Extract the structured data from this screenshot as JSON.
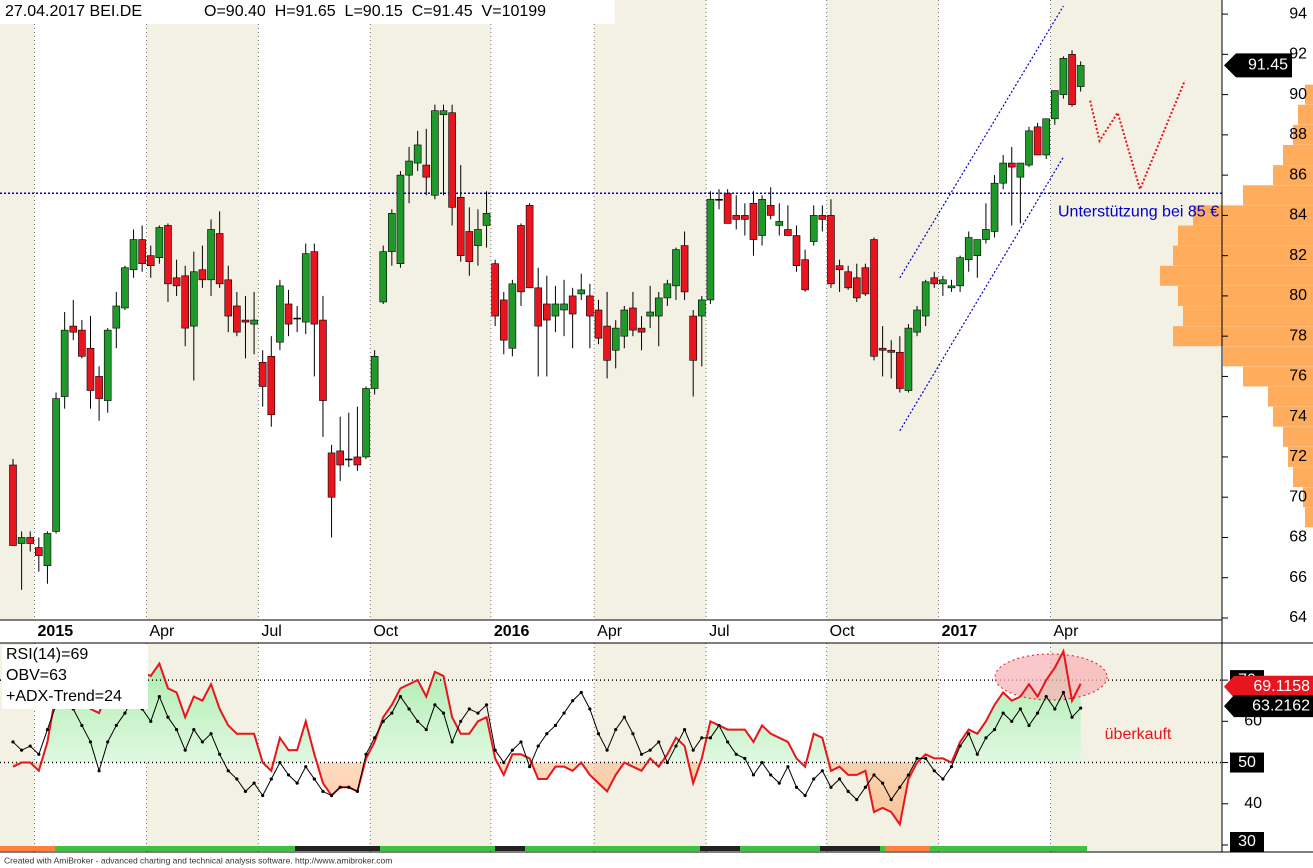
{
  "chart_data": [
    {
      "type": "candlestick",
      "header": [
        "27.04.2017 BEI.DE",
        "O=90.40  H=91.65  L=90.15  C=91.45  V=10199"
      ],
      "categories": [
        null,
        null,
        null,
        "2015",
        null,
        null,
        null,
        null,
        null,
        null,
        null,
        null,
        null,
        null,
        null,
        null,
        "Apr",
        null,
        null,
        null,
        null,
        null,
        null,
        null,
        null,
        null,
        null,
        null,
        null,
        "Jul",
        null,
        null,
        null,
        null,
        null,
        null,
        null,
        null,
        null,
        null,
        null,
        null,
        "Oct",
        null,
        null,
        null,
        null,
        null,
        null,
        null,
        null,
        null,
        null,
        null,
        null,
        null,
        "2016",
        null,
        null,
        null,
        null,
        null,
        null,
        null,
        null,
        null,
        null,
        null,
        "Apr",
        null,
        null,
        null,
        null,
        null,
        null,
        null,
        null,
        null,
        null,
        null,
        null,
        "Jul",
        null,
        null,
        null,
        null,
        null,
        null,
        null,
        null,
        null,
        null,
        null,
        null,
        null,
        "Oct",
        null,
        null,
        null,
        null,
        null,
        null,
        null,
        null,
        null,
        null,
        null,
        null,
        "2017",
        null,
        null,
        null,
        null,
        null,
        null,
        null,
        null,
        null,
        null,
        null,
        null,
        "Apr",
        null,
        null,
        null
      ],
      "open": [
        71.6,
        67.7,
        68.0,
        67.5,
        66.6,
        68.3,
        75.0,
        78.5,
        78.3,
        77.4,
        76,
        74.8,
        78.4,
        79.4,
        81.3,
        82.8,
        82.0,
        81.9,
        83.5,
        80.9,
        81,
        78.5,
        81.3,
        80.8,
        83.1,
        80.8,
        79.5,
        78.8,
        78.6,
        76.7,
        77.0,
        77.7,
        79.6,
        78.9,
        78.7,
        82.2,
        78.8,
        72.2,
        72.3,
        71.9,
        72.0,
        72.0,
        75.4,
        79.7,
        82.2,
        81.6,
        86.0,
        86.6,
        86.5,
        85.0,
        89.0,
        89.1,
        84.9,
        83.2,
        82.5,
        83.5,
        81.6,
        79.8,
        77.4,
        83.5,
        84.5,
        80.4,
        79.6,
        79.0,
        79.3,
        80.0,
        80.1,
        80.0,
        79.3,
        78.5,
        77.3,
        78.0,
        79.4,
        78.4,
        79.0,
        79.0,
        79.9,
        80.5,
        82.5,
        79.0,
        79.0,
        79.8,
        84.8,
        85.1,
        84.0,
        84.0,
        84.6,
        83.0,
        84.5,
        83.5,
        83.3,
        83.0,
        81.8,
        82.7,
        84.0,
        84.0,
        81.5,
        81.2,
        80.9,
        81.4,
        82.8,
        77.4,
        77.3,
        77.2,
        75.3,
        78.2,
        79.0,
        80.9,
        80.6,
        80.4,
        80.5,
        81.8,
        82.0,
        82.8,
        83.2,
        85.6,
        86.6,
        85.9,
        86.5,
        88.4,
        87.0,
        88.8,
        90.0,
        92.0,
        90.4
      ],
      "high": [
        71.9,
        68.3,
        68.3,
        68,
        68.3,
        75.2,
        79.2,
        79.8,
        78.8,
        79.0,
        76.5,
        78.4,
        80.2,
        81.5,
        83.3,
        83.5,
        82.5,
        83.5,
        83.6,
        81.8,
        81.5,
        82.2,
        82.5,
        83.8,
        84.2,
        81.5,
        80.2,
        80.0,
        80.2,
        77.3,
        78.0,
        80.8,
        80.3,
        79.5,
        82.6,
        82.6,
        80,
        72.6,
        74,
        74.2,
        74.5,
        75.5,
        77.3,
        82.5,
        84.3,
        86.2,
        87.4,
        88.2,
        88.3,
        89.5,
        89.5,
        89.5,
        86.5,
        84.4,
        84.3,
        85.2,
        81.8,
        80.2,
        80.8,
        83.6,
        84.6,
        81.4,
        81.0,
        80.5,
        80.8,
        80.4,
        81.1,
        80.6,
        79.8,
        80.2,
        78.8,
        79.5,
        80.2,
        79.0,
        80.5,
        80.2,
        80.8,
        82.4,
        83.2,
        79.3,
        80.0,
        85.2,
        85.3,
        85.3,
        85.0,
        84.6,
        85.2,
        85.0,
        85.4,
        84.6,
        84.5,
        83.5,
        82.3,
        84.5,
        84.5,
        84.8,
        81.8,
        81.5,
        81.6,
        81.6,
        82.9,
        78.5,
        77.8,
        78,
        78.6,
        79.5,
        80.8,
        81.2,
        81.0,
        80.8,
        82.0,
        83.2,
        82.8,
        84.6,
        86.0,
        87.0,
        87.4,
        86.6,
        88.4,
        88.6,
        88.8,
        90.2,
        91.9,
        92.2,
        91.65
      ],
      "low": [
        67.6,
        65.4,
        67.3,
        66.3,
        65.7,
        68.2,
        74.4,
        77.8,
        76.9,
        74.4,
        73.8,
        74.2,
        77.4,
        79.3,
        80.9,
        81.2,
        80.9,
        81.6,
        79.7,
        80.0,
        77.5,
        75.8,
        80.4,
        80.0,
        80.4,
        78.2,
        78.0,
        76.9,
        77.1,
        74.5,
        73.5,
        77.3,
        78.0,
        78.2,
        78.1,
        76.0,
        73.0,
        68.0,
        70.8,
        71.5,
        71.3,
        71.9,
        75.1,
        79.6,
        81.5,
        81.4,
        84.6,
        86.2,
        85.0,
        84.8,
        85.0,
        83.5,
        81.7,
        81.0,
        81.5,
        82.4,
        78.5,
        77.1,
        77.0,
        79.5,
        80.4,
        76.0,
        76.0,
        78.2,
        78.0,
        77.4,
        79.8,
        77.4,
        77.6,
        75.9,
        76.4,
        77.4,
        78.0,
        77.3,
        78.4,
        77.5,
        79.5,
        79.8,
        79.8,
        75.0,
        76.5,
        79.6,
        84.3,
        83.6,
        83.3,
        83.0,
        82.0,
        82.5,
        83.8,
        83.0,
        83.0,
        81.2,
        80.2,
        82.5,
        83.2,
        80.4,
        80.2,
        80.3,
        79.7,
        80.0,
        76.8,
        76.0,
        75.9,
        75.2,
        75.2,
        78.0,
        78.5,
        80.4,
        80.0,
        80.2,
        80.2,
        81.2,
        80.9,
        82.6,
        82.9,
        85.3,
        83.5,
        83.6,
        86.4,
        87.1,
        86.8,
        88.5,
        89.8,
        89.4,
        90.15
      ],
      "close": [
        67.6,
        68.0,
        67.7,
        67.1,
        68.2,
        74.9,
        78.3,
        78.2,
        77.0,
        75.3,
        74.9,
        78.3,
        79.5,
        81.4,
        82.8,
        81.6,
        81.5,
        83.4,
        80.6,
        80.5,
        78.4,
        81.2,
        80.8,
        83.3,
        80.6,
        79.0,
        78.2,
        78.7,
        78.8,
        75.5,
        74.1,
        80.5,
        78.6,
        78.9,
        82.1,
        78.6,
        74.8,
        70.0,
        71.6,
        71.9,
        71.6,
        75.4,
        77.0,
        82.2,
        84.1,
        86.0,
        86.7,
        87.5,
        85.9,
        89.2,
        89.2,
        84.4,
        82.0,
        81.7,
        83.3,
        84.1,
        79.0,
        77.8,
        80.6,
        80.2,
        80.4,
        78.5,
        78.8,
        79.6,
        79.6,
        79.1,
        80.3,
        79.0,
        77.9,
        76.8,
        78.4,
        79.3,
        78.3,
        78.2,
        79.2,
        79.9,
        80.6,
        82.3,
        80.2,
        76.8,
        79.8,
        84.8,
        84.8,
        83.6,
        83.8,
        83.8,
        82.8,
        84.8,
        84.0,
        83.7,
        83.0,
        81.5,
        80.3,
        84.0,
        83.8,
        80.6,
        81.3,
        80.4,
        79.9,
        80.1,
        77.0,
        77.3,
        77.2,
        75.4,
        78.4,
        79.3,
        80.7,
        80.6,
        80.8,
        80.5,
        81.9,
        82.9,
        82.8,
        83.3,
        85.6,
        86.6,
        86.4,
        86.6,
        88.2,
        87.0,
        88.8,
        90.2,
        91.8,
        89.5,
        91.45
      ],
      "up_color": "#1f9a2a",
      "down_color": "#e8141e",
      "ylim": [
        63.9,
        94.7
      ],
      "yticks": [
        64,
        66,
        68,
        70,
        72,
        74,
        76,
        78,
        80,
        82,
        84,
        86,
        88,
        90,
        92,
        94
      ],
      "price_marker": {
        "value": 91.45,
        "label": "91.45"
      },
      "support": {
        "value": 85.1,
        "label": "Unterstützung bei 85 €",
        "color": "#0000cc"
      },
      "channel": [
        {
          "x": [
            103,
            122
          ],
          "y": [
            80.9,
            94.4
          ]
        },
        {
          "x": [
            103,
            122
          ],
          "y": [
            73.3,
            86.9
          ]
        }
      ],
      "forecast": {
        "x": [
          125.1,
          126.2,
          128.3,
          130.9,
          136.1
        ],
        "y": [
          89.7,
          87.7,
          89.1,
          85.3,
          90.7
        ],
        "color": "#e8141e"
      },
      "volume_profile": {
        "color": "#ffad5c",
        "prices": [
          69,
          70,
          71,
          72,
          73,
          74,
          75,
          76,
          77,
          78,
          79,
          80,
          81,
          82,
          83,
          84,
          85,
          86,
          87,
          88,
          89,
          90
        ],
        "values": [
          8,
          10,
          20,
          25,
          30,
          40,
          45,
          70,
          90,
          140,
          130,
          135,
          153,
          140,
          135,
          120,
          70,
          40,
          30,
          20,
          15,
          8
        ]
      }
    },
    {
      "type": "line",
      "series": [
        {
          "name": "RSI(14)=69",
          "color": "#e8141e",
          "values": [
            49,
            50,
            50,
            48,
            55,
            67,
            72,
            71,
            69,
            63,
            62,
            68,
            70,
            73,
            75,
            72,
            71,
            74,
            68,
            67,
            61,
            66,
            65,
            69,
            63,
            59,
            57,
            57,
            57,
            50,
            48,
            56,
            53,
            53,
            60,
            52,
            45,
            42,
            44,
            44,
            43,
            51,
            55,
            61,
            64,
            68,
            69,
            70,
            66,
            72,
            71,
            61,
            57,
            57,
            60,
            61,
            51,
            47,
            52,
            52,
            51,
            46,
            46,
            49,
            49,
            48,
            50,
            47,
            45,
            43,
            47,
            50,
            49,
            48,
            51,
            49,
            52,
            56,
            54,
            45,
            51,
            60,
            59,
            58,
            58,
            58,
            55,
            59,
            57,
            56,
            55,
            51,
            49,
            57,
            56,
            48,
            49,
            47,
            47,
            48,
            38,
            39,
            38,
            35,
            46,
            50,
            52,
            51,
            51,
            50,
            55,
            58,
            57,
            60,
            64,
            67,
            65,
            66,
            69,
            66,
            70,
            73,
            77,
            65,
            69.1158
          ]
        },
        {
          "name": "OBV=63",
          "color": "#000000",
          "values": [
            55,
            53,
            54,
            52,
            58,
            64,
            66,
            63,
            59,
            55,
            48,
            55,
            59,
            62,
            66,
            63,
            60,
            66,
            61,
            58,
            53,
            58,
            55,
            57,
            52,
            48,
            46,
            43,
            45,
            42,
            46,
            50,
            47,
            45,
            49,
            46,
            43,
            42,
            44,
            44,
            43,
            52,
            56,
            60,
            62,
            66,
            63,
            60,
            58,
            64,
            62,
            55,
            60,
            63,
            62,
            64,
            53,
            50,
            53,
            55,
            49,
            54,
            57,
            59,
            62,
            65,
            67,
            63,
            57,
            53,
            58,
            61,
            57,
            52,
            53,
            55,
            50,
            54,
            58,
            53,
            56,
            56,
            59,
            55,
            52,
            51,
            47,
            50,
            47,
            45,
            49,
            44,
            42,
            46,
            48,
            44,
            46,
            43,
            41,
            44,
            47,
            45,
            41,
            44,
            47,
            51,
            51,
            48,
            46,
            49,
            54,
            57,
            52,
            56,
            58,
            62,
            60,
            63,
            59,
            62,
            66,
            63,
            67,
            61,
            63.2162
          ]
        }
      ],
      "indicator_label": "+ADX-Trend=24",
      "annotation": {
        "label": "überkauft",
        "color": "#e8141e"
      },
      "ylim": [
        28.3,
        79
      ],
      "yticks": [
        30,
        40,
        50,
        60,
        70
      ],
      "hlines": [
        70,
        50
      ]
    }
  ],
  "footer": "Created with AmiBroker - advanced charting and technical analysis software. http://www.amibroker.com"
}
